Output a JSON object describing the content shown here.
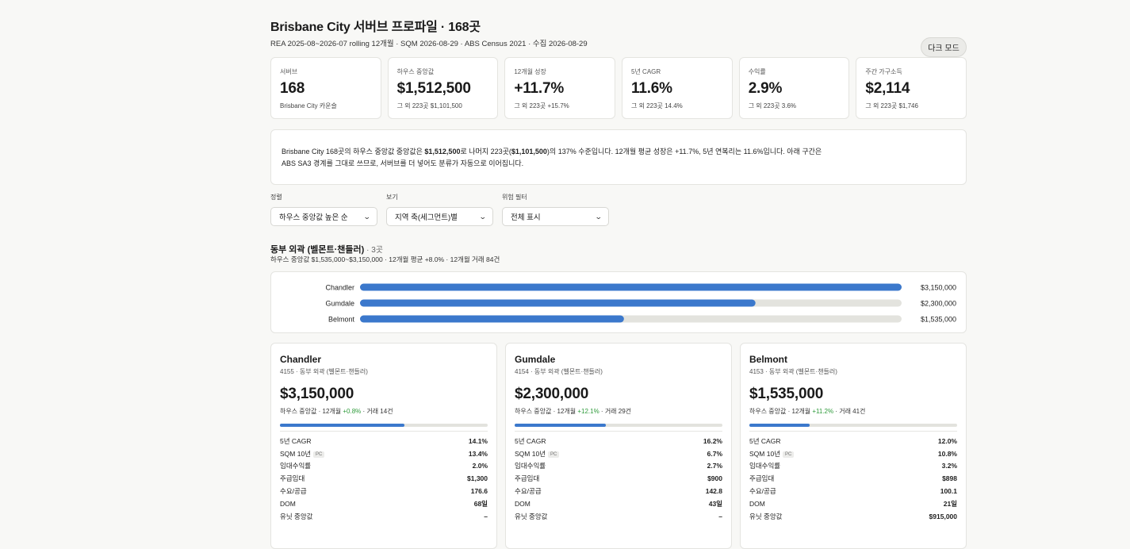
{
  "header": {
    "title": "Brisbane City 서버브 프로파일 · 168곳",
    "subtitle": "REA 2025-08~2026-07 rolling 12개월 · SQM 2026-08-29 · ABS Census 2021 · 수집 2026-08-29",
    "dark_mode_label": "다크 모드"
  },
  "stats": [
    {
      "label": "서버브",
      "value": "168",
      "sub": "Brisbane City 카운슬"
    },
    {
      "label": "하우스 중앙값",
      "value": "$1,512,500",
      "sub": "그 외 223곳 $1,101,500"
    },
    {
      "label": "12개월 성장",
      "value": "+11.7%",
      "sub": "그 외 223곳 +15.7%"
    },
    {
      "label": "5년 CAGR",
      "value": "11.6%",
      "sub": "그 외 223곳 14.4%"
    },
    {
      "label": "수익률",
      "value": "2.9%",
      "sub": "그 외 223곳 3.6%"
    },
    {
      "label": "주간 가구소득",
      "value": "$2,114",
      "sub": "그 외 223곳 $1,746"
    }
  ],
  "summary": {
    "t1": "Brisbane City 168곳의 하우스 중앙값 중앙값은 ",
    "b1": "$1,512,500",
    "t2": "로 나머지 223곳(",
    "b2": "$1,101,500",
    "t3": ")의 137% 수준입니다. 12개월 평균 성장은 +11.7%, 5년 연복리는 11.6%입니다. 아래 구간은",
    "t4": "ABS SA3 경계를 그대로 쓰므로, 서버브를 더 넣어도 분류가 자동으로 이어집니다."
  },
  "filters": [
    {
      "label": "정렬",
      "value": "하우스 중앙값 높은 순"
    },
    {
      "label": "보기",
      "value": "지역 축(세그먼트)별"
    },
    {
      "label": "위험 필터",
      "value": "전체 표시"
    }
  ],
  "segment": {
    "title": "동부 외곽 (벨몬트·챈들러)",
    "count": " · 3곳",
    "meta": "하우스 중앙값 $1,535,000~$3,150,000 · 12개월 평균 +8.0% · 12개월 거래 84건"
  },
  "chart_data": {
    "type": "bar",
    "orientation": "horizontal",
    "categories": [
      "Chandler",
      "Gumdale",
      "Belmont"
    ],
    "values": [
      3150000,
      2300000,
      1535000
    ],
    "value_labels": [
      "$3,150,000",
      "$2,300,000",
      "$1,535,000"
    ],
    "xlim": [
      0,
      3150000
    ],
    "colors": {
      "bar": "#3b78cc",
      "track": "#e3e3de"
    }
  },
  "cards": [
    {
      "name": "Chandler",
      "location": "4155 · 동부 외곽 (벨몬트·챈들러)",
      "price": "$3,150,000",
      "info_pre": "하우스 중앙값 · 12개월 ",
      "growth": "+0.8%",
      "info_post": " · 거래 14건",
      "progress": 0.6,
      "rows": [
        {
          "label": "5년 CAGR",
          "value": "14.1%"
        },
        {
          "label": "SQM 10년",
          "tag": "PC",
          "value": "13.4%"
        },
        {
          "label": "임대수익률",
          "value": "2.0%"
        },
        {
          "label": "주급임대",
          "value": "$1,300"
        },
        {
          "label": "수요/공급",
          "value": "176.6"
        },
        {
          "label": "DOM",
          "value": "68일"
        },
        {
          "label": "유닛 중앙값",
          "value": "–"
        }
      ]
    },
    {
      "name": "Gumdale",
      "location": "4154 · 동부 외곽 (벨몬트·챈들러)",
      "price": "$2,300,000",
      "info_pre": "하우스 중앙값 · 12개월 ",
      "growth": "+12.1%",
      "info_post": " · 거래 29건",
      "progress": 0.44,
      "rows": [
        {
          "label": "5년 CAGR",
          "value": "16.2%"
        },
        {
          "label": "SQM 10년",
          "tag": "PC",
          "value": "6.7%"
        },
        {
          "label": "임대수익률",
          "value": "2.7%"
        },
        {
          "label": "주급임대",
          "value": "$900"
        },
        {
          "label": "수요/공급",
          "value": "142.8"
        },
        {
          "label": "DOM",
          "value": "43일"
        },
        {
          "label": "유닛 중앙값",
          "value": "–"
        }
      ]
    },
    {
      "name": "Belmont",
      "location": "4153 · 동부 외곽 (벨몬트·챈들러)",
      "price": "$1,535,000",
      "info_pre": "하우스 중앙값 · 12개월 ",
      "growth": "+11.2%",
      "info_post": " · 거래 41건",
      "progress": 0.29,
      "rows": [
        {
          "label": "5년 CAGR",
          "value": "12.0%"
        },
        {
          "label": "SQM 10년",
          "tag": "PC",
          "value": "10.8%"
        },
        {
          "label": "임대수익률",
          "value": "3.2%"
        },
        {
          "label": "주급임대",
          "value": "$898"
        },
        {
          "label": "수요/공급",
          "value": "100.1"
        },
        {
          "label": "DOM",
          "value": "21일"
        },
        {
          "label": "유닛 중앙값",
          "value": "$915,000"
        }
      ]
    }
  ]
}
